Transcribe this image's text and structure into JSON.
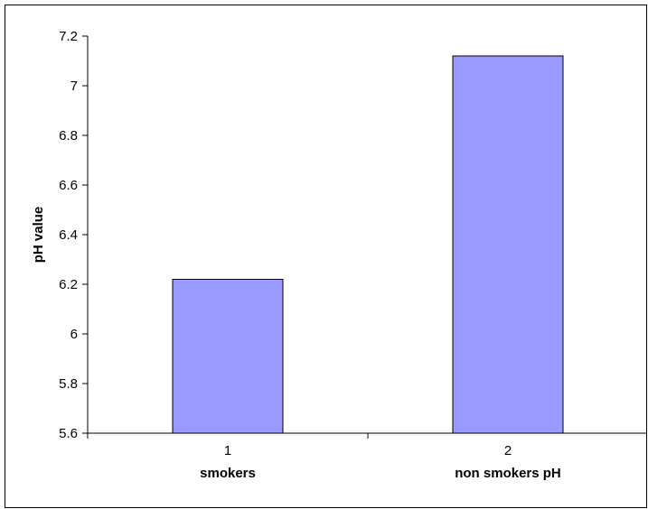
{
  "chart_data": {
    "type": "bar",
    "title": "",
    "xlabel": "",
    "ylabel": "pH value",
    "ylim": [
      5.6,
      7.2
    ],
    "yticks": [
      5.6,
      5.8,
      6,
      6.2,
      6.4,
      6.6,
      6.8,
      7,
      7.2
    ],
    "categories": [
      "1",
      "2"
    ],
    "category_sublabels": [
      "smokers",
      "non smokers pH"
    ],
    "values": [
      6.22,
      7.12
    ],
    "grid": false,
    "legend": "none",
    "colors": {
      "bar_fill": "#9999ff",
      "bar_stroke": "#000000",
      "axis": "#000000",
      "background": "#ffffff"
    }
  }
}
